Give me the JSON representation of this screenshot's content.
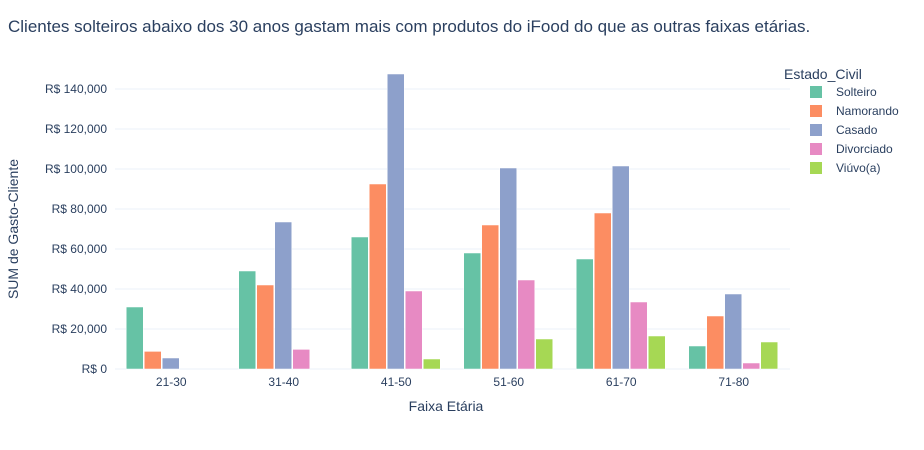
{
  "chart_data": {
    "type": "bar",
    "title": "Clientes solteiros abaixo dos 30 anos gastam mais com produtos do iFood do que as outras faixas etárias.",
    "xlabel": "Faixa Etária",
    "ylabel": "SUM de Gasto-Cliente",
    "ylim": [
      0,
      150000
    ],
    "y_ticks": [
      0,
      20000,
      40000,
      60000,
      80000,
      100000,
      120000,
      140000
    ],
    "y_tick_labels": [
      "R$ 0",
      "R$ 20,000",
      "R$ 40,000",
      "R$ 60,000",
      "R$ 80,000",
      "R$ 100,000",
      "R$ 120,000",
      "R$ 140,000"
    ],
    "categories": [
      "21-30",
      "31-40",
      "41-50",
      "51-60",
      "61-70",
      "71-80"
    ],
    "legend_title": "Estado_Civil",
    "legend_position": "top-right",
    "grid": true,
    "series": [
      {
        "name": "Solteiro",
        "color": "#66c2a5",
        "values": [
          31000,
          49000,
          66000,
          58000,
          55000,
          11500
        ]
      },
      {
        "name": "Namorando",
        "color": "#fc8d62",
        "values": [
          8800,
          42000,
          92500,
          72000,
          78000,
          26500
        ]
      },
      {
        "name": "Casado",
        "color": "#8da0cb",
        "values": [
          5500,
          73500,
          147500,
          100500,
          101500,
          37500
        ]
      },
      {
        "name": "Divorciado",
        "color": "#e78ac3",
        "values": [
          0,
          9800,
          39000,
          44500,
          33500,
          3000
        ]
      },
      {
        "name": "Viúvo(a)",
        "color": "#a6d854",
        "values": [
          0,
          0,
          5000,
          15000,
          16500,
          13500
        ]
      }
    ]
  }
}
